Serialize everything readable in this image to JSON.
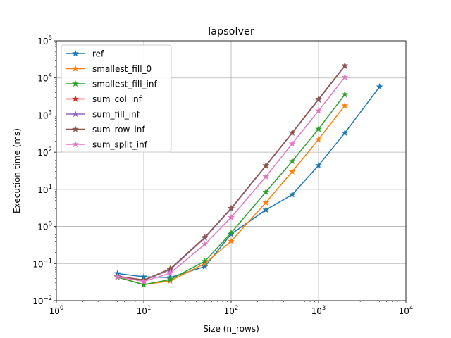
{
  "chart_data": {
    "type": "line",
    "title": "lapsolver",
    "xlabel": "Size (n_rows)",
    "ylabel": "Execution time (ms)",
    "xscale": "log",
    "yscale": "log",
    "xlim": [
      1,
      10000
    ],
    "ylim": [
      0.01,
      100000
    ],
    "grid": true,
    "legend_position": "upper-left",
    "x_ticks": [
      {
        "value": 1,
        "base": "10",
        "exp": "0"
      },
      {
        "value": 10,
        "base": "10",
        "exp": "1"
      },
      {
        "value": 100,
        "base": "10",
        "exp": "2"
      },
      {
        "value": 1000,
        "base": "10",
        "exp": "3"
      },
      {
        "value": 10000,
        "base": "10",
        "exp": "4"
      }
    ],
    "y_ticks": [
      {
        "value": 0.01,
        "base": "10",
        "exp": "−2"
      },
      {
        "value": 0.1,
        "base": "10",
        "exp": "−1"
      },
      {
        "value": 1,
        "base": "10",
        "exp": "0"
      },
      {
        "value": 10,
        "base": "10",
        "exp": "1"
      },
      {
        "value": 100,
        "base": "10",
        "exp": "2"
      },
      {
        "value": 1000,
        "base": "10",
        "exp": "3"
      },
      {
        "value": 10000,
        "base": "10",
        "exp": "4"
      },
      {
        "value": 100000,
        "base": "10",
        "exp": "5"
      }
    ],
    "series": [
      {
        "name": "ref",
        "color": "#1f77b4",
        "marker": "star",
        "x": [
          5,
          10,
          20,
          50,
          100,
          250,
          500,
          1000,
          2000,
          5000
        ],
        "y": [
          0.054,
          0.044,
          0.042,
          0.083,
          0.62,
          2.8,
          7.2,
          44,
          330,
          5800
        ]
      },
      {
        "name": "smallest_fill_0",
        "color": "#ff7f0e",
        "marker": "star",
        "x": [
          5,
          10,
          20,
          50,
          100,
          250,
          500,
          1000,
          2000
        ],
        "y": [
          0.044,
          0.027,
          0.034,
          0.1,
          0.4,
          4.4,
          30,
          220,
          1800
        ]
      },
      {
        "name": "smallest_fill_inf",
        "color": "#2ca02c",
        "marker": "star",
        "x": [
          5,
          10,
          20,
          50,
          100,
          250,
          500,
          1000,
          2000
        ],
        "y": [
          0.043,
          0.027,
          0.037,
          0.115,
          0.67,
          8.5,
          57,
          420,
          3600
        ]
      },
      {
        "name": "sum_col_inf",
        "color": "#d62728",
        "marker": "star",
        "x": [
          5,
          10,
          20,
          50,
          100,
          250,
          500,
          1000,
          2000
        ],
        "y": [
          0.045,
          0.036,
          0.07,
          0.5,
          3.0,
          43,
          330,
          2600,
          21000
        ]
      },
      {
        "name": "sum_fill_inf",
        "color": "#9467bd",
        "marker": "star",
        "x": [
          5,
          10,
          20,
          50,
          100,
          250,
          500,
          1000,
          2000
        ],
        "y": [
          0.045,
          0.035,
          0.068,
          0.49,
          3.0,
          43,
          330,
          2600,
          21000
        ]
      },
      {
        "name": "sum_row_inf",
        "color": "#8c564b",
        "marker": "star",
        "x": [
          5,
          10,
          20,
          50,
          100,
          250,
          500,
          1000,
          2000
        ],
        "y": [
          0.046,
          0.036,
          0.072,
          0.51,
          3.1,
          44,
          335,
          2700,
          21500
        ]
      },
      {
        "name": "sum_split_inf",
        "color": "#e377c2",
        "marker": "star",
        "x": [
          5,
          10,
          20,
          50,
          100,
          250,
          500,
          1000,
          2000
        ],
        "y": [
          0.044,
          0.033,
          0.055,
          0.33,
          1.75,
          22,
          170,
          1300,
          10500
        ]
      }
    ]
  }
}
